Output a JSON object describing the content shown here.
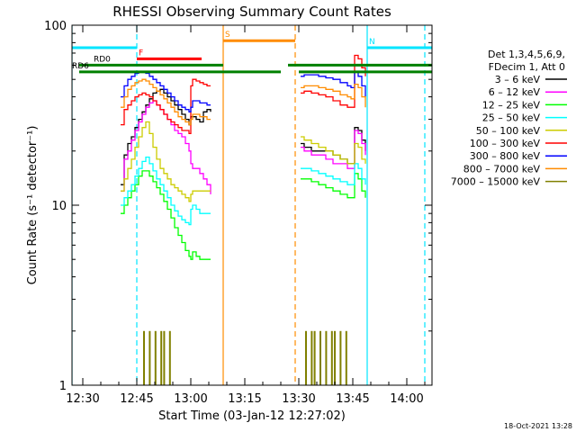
{
  "chart_data": {
    "type": "line",
    "title": "RHESSI Observing Summary Count Rates",
    "xlabel": "Start Time (03-Jan-12 12:27:02)",
    "ylabel": "Count Rate (s⁻¹ detector⁻¹)",
    "x_unit": "minutes since 12:27:02",
    "xlim": [
      0,
      100
    ],
    "ylim": [
      1,
      100
    ],
    "yscale": "log",
    "x_ticks": [
      {
        "t": 3,
        "label": "12:30"
      },
      {
        "t": 18,
        "label": "12:45"
      },
      {
        "t": 33,
        "label": "13:00"
      },
      {
        "t": 48,
        "label": "13:15"
      },
      {
        "t": 63,
        "label": "13:30"
      },
      {
        "t": 78,
        "label": "13:45"
      },
      {
        "t": 93,
        "label": "14:00"
      }
    ],
    "y_ticks": [
      {
        "v": 1,
        "label": "1"
      },
      {
        "v": 10,
        "label": "10"
      },
      {
        "v": 100,
        "label": "100"
      }
    ],
    "legend_header": [
      "Det 1,3,4,5,6,9,",
      "FDecim 1, Att 0"
    ],
    "legend_position": "right",
    "series": [
      {
        "name": "3 – 6 keV",
        "color": "#000000",
        "x": [
          13.5,
          14.5,
          15.5,
          16.5,
          17.5,
          18.5,
          19.5,
          20.5,
          21.5,
          22.5,
          23.5,
          24.5,
          25.5,
          26.5,
          27.5,
          28.5,
          29.5,
          30.5,
          31.5,
          32.5,
          33.0,
          33.5,
          34.5,
          35.5,
          36.5,
          37.5,
          38.5,
          63.5,
          64.5,
          66.5,
          68.5,
          70.5,
          72.5,
          74.5,
          76.5,
          77.5,
          78.5,
          79.5,
          80.5,
          81.5
        ],
        "y": [
          13,
          19,
          22,
          24,
          27,
          30,
          33,
          36,
          39,
          42,
          43,
          44,
          42,
          40,
          38,
          36,
          34,
          32,
          30,
          28,
          31,
          31,
          30,
          29,
          33,
          34,
          33,
          22,
          21,
          20,
          20,
          20,
          19,
          18,
          17,
          17,
          27,
          26,
          23,
          20
        ]
      },
      {
        "name": "6 – 12 keV",
        "color": "#ff00ff",
        "x": [
          13.5,
          14.5,
          15.5,
          16.5,
          17.5,
          18.5,
          19.5,
          20.5,
          21.5,
          22.5,
          23.5,
          24.5,
          25.5,
          26.5,
          27.5,
          28.5,
          29.5,
          30.5,
          31.5,
          32.5,
          33.0,
          33.5,
          34.5,
          35.5,
          36.5,
          37.5,
          38.5,
          63.5,
          64.5,
          66.5,
          68.5,
          70.5,
          72.5,
          74.5,
          76.5,
          77.5,
          78.5,
          79.5,
          80.5,
          81.5
        ],
        "y": [
          12,
          18,
          20,
          23,
          26,
          29,
          32,
          35,
          37,
          38,
          36,
          34,
          32,
          30,
          28,
          26,
          25,
          24,
          22,
          20,
          17,
          16,
          16,
          15,
          14,
          13,
          11.5,
          21,
          20,
          19,
          19,
          18,
          17,
          17,
          16,
          16,
          26,
          25,
          22,
          19
        ]
      },
      {
        "name": "12 – 25 keV",
        "color": "#00ff00",
        "x": [
          13.5,
          14.5,
          15.5,
          16.5,
          17.5,
          18.5,
          19.5,
          20.5,
          21.5,
          22.5,
          23.5,
          24.5,
          25.5,
          26.5,
          27.5,
          28.5,
          29.5,
          30.5,
          31.5,
          32.5,
          33.0,
          33.5,
          34.5,
          35.5,
          36.5,
          37.5,
          38.5,
          63.5,
          64.5,
          66.5,
          68.5,
          70.5,
          72.5,
          74.5,
          76.5,
          77.5,
          78.5,
          79.5,
          80.5,
          81.5
        ],
        "y": [
          9,
          10,
          11,
          12,
          13,
          14.5,
          15.5,
          15.5,
          14.5,
          13.5,
          12.5,
          11.5,
          10.5,
          9.5,
          8.5,
          7.5,
          6.8,
          6.2,
          5.6,
          5.2,
          5.0,
          5.5,
          5.2,
          5.0,
          5.0,
          5.0,
          5.0,
          14,
          14,
          13.5,
          13,
          12.5,
          12,
          11.5,
          11,
          11,
          15,
          14,
          12,
          11
        ]
      },
      {
        "name": "25 – 50 keV",
        "color": "#00ffff",
        "x": [
          13.5,
          14.5,
          15.5,
          16.5,
          17.5,
          18.5,
          19.5,
          20.5,
          21.5,
          22.5,
          23.5,
          24.5,
          25.5,
          26.5,
          27.5,
          28.5,
          29.5,
          30.5,
          31.5,
          32.5,
          33.0,
          33.5,
          34.5,
          35.5,
          36.5,
          37.5,
          38.5,
          63.5,
          64.5,
          66.5,
          68.5,
          70.5,
          72.5,
          74.5,
          76.5,
          77.5,
          78.5,
          79.5,
          80.5,
          81.5
        ],
        "y": [
          10,
          11,
          12,
          13,
          14.5,
          16,
          17.5,
          18.5,
          17,
          15.5,
          14,
          13,
          12,
          11,
          10,
          9.3,
          8.7,
          8.3,
          8.0,
          7.8,
          9.5,
          10,
          9.5,
          9.0,
          9.0,
          9.0,
          9.0,
          16,
          16,
          15.5,
          15,
          14.5,
          14,
          13.5,
          13,
          13,
          17,
          16,
          14,
          13
        ]
      },
      {
        "name": "50 – 100 keV",
        "color": "#cccc00",
        "x": [
          13.5,
          14.5,
          15.5,
          16.5,
          17.5,
          18.5,
          19.5,
          20.5,
          21.5,
          22.5,
          23.5,
          24.5,
          25.5,
          26.5,
          27.5,
          28.5,
          29.5,
          30.5,
          31.5,
          32.5,
          33.0,
          33.5,
          34.5,
          35.5,
          36.5,
          37.5,
          38.5,
          63.5,
          64.5,
          66.5,
          68.5,
          70.5,
          72.5,
          74.5,
          76.5,
          77.5,
          78.5,
          79.5,
          80.5,
          81.5
        ],
        "y": [
          12,
          14,
          16,
          18,
          21,
          24,
          27,
          29,
          25,
          21,
          18,
          16,
          15,
          14,
          13,
          12.5,
          12,
          11.5,
          11,
          10.5,
          11.5,
          12,
          12,
          12,
          12,
          12,
          12,
          24,
          23,
          22,
          21,
          20,
          19,
          18,
          17,
          17,
          22,
          21,
          18,
          17
        ]
      },
      {
        "name": "100 – 300 keV",
        "color": "#ff0000",
        "x": [
          13.5,
          14.5,
          15.5,
          16.5,
          17.5,
          18.5,
          19.5,
          20.5,
          21.5,
          22.5,
          23.5,
          24.5,
          25.5,
          26.5,
          27.5,
          28.5,
          29.5,
          30.5,
          31.5,
          32.5,
          33.0,
          33.5,
          34.5,
          35.5,
          36.5,
          37.5,
          38.5,
          63.5,
          64.5,
          66.5,
          68.5,
          70.5,
          72.5,
          74.5,
          76.5,
          77.5,
          78.5,
          79.5,
          80.5,
          81.5
        ],
        "y": [
          28,
          34,
          36,
          38,
          40,
          41,
          42,
          41,
          40,
          38,
          36,
          34,
          32,
          30,
          29,
          28,
          27,
          26,
          26,
          25,
          46,
          50,
          49,
          48,
          47,
          46,
          46,
          42,
          43,
          42,
          41,
          40,
          38,
          36,
          35,
          35,
          68,
          65,
          58,
          52
        ]
      },
      {
        "name": "300 – 800 keV",
        "color": "#0000ff",
        "x": [
          13.5,
          14.5,
          15.5,
          16.5,
          17.5,
          18.5,
          19.5,
          20.5,
          21.5,
          22.5,
          23.5,
          24.5,
          25.5,
          26.5,
          27.5,
          28.5,
          29.5,
          30.5,
          31.5,
          32.5,
          33.0,
          33.5,
          34.5,
          35.5,
          36.5,
          37.5,
          38.5,
          63.5,
          64.5,
          66.5,
          68.5,
          70.5,
          72.5,
          74.5,
          76.5,
          77.5,
          78.5,
          79.5,
          80.5,
          81.5
        ],
        "y": [
          40,
          46,
          50,
          52,
          54,
          55,
          55,
          54,
          52,
          50,
          48,
          46,
          44,
          42,
          40,
          38,
          36,
          35,
          34,
          33,
          35,
          38,
          38,
          37,
          37,
          36,
          36,
          52,
          53,
          53,
          52,
          51,
          50,
          48,
          46,
          45,
          55,
          52,
          46,
          40
        ]
      },
      {
        "name": "800 – 7000 keV",
        "color": "#ff8c00",
        "x": [
          13.5,
          14.5,
          15.5,
          16.5,
          17.5,
          18.5,
          19.5,
          20.5,
          21.5,
          22.5,
          23.5,
          24.5,
          25.5,
          26.5,
          27.5,
          28.5,
          29.5,
          30.5,
          31.5,
          32.5,
          33.0,
          33.5,
          34.5,
          35.5,
          36.5,
          37.5,
          38.5,
          63.5,
          64.5,
          66.5,
          68.5,
          70.5,
          72.5,
          74.5,
          76.5,
          77.5,
          78.5,
          79.5,
          80.5,
          81.5
        ],
        "y": [
          35,
          40,
          44,
          46,
          48,
          49,
          50,
          49,
          47,
          45,
          43,
          41,
          39,
          37,
          35,
          33,
          31,
          30,
          29,
          28,
          30,
          32,
          32,
          31,
          31,
          30,
          30,
          45,
          46,
          46,
          45,
          44,
          43,
          41,
          40,
          39,
          47,
          45,
          40,
          35
        ]
      },
      {
        "name": "7000 – 15000 keV",
        "color": "#808000",
        "x": [
          20,
          20.8,
          21.6,
          22.4,
          23.2,
          24,
          24.8,
          25.6,
          26.4,
          27.2,
          28,
          65,
          65.8,
          66.6,
          67.4,
          68.2,
          69,
          69.8,
          70.6,
          71.4,
          72.2,
          73,
          73.8,
          74.6,
          75.4,
          76.2
        ],
        "y": [
          2,
          1,
          2,
          1,
          2,
          1,
          2,
          2,
          1,
          2,
          1,
          2,
          1,
          2,
          2,
          1,
          2,
          1,
          2,
          1,
          2,
          2,
          1,
          2,
          1,
          2
        ]
      }
    ],
    "attenuator_bars": [
      {
        "label": "RD0",
        "color": "#008000",
        "segments": [
          [
            2,
            42
          ],
          [
            60,
            100
          ]
        ],
        "level": 60
      },
      {
        "label": "RD6",
        "color": "#008000",
        "segments": [
          [
            2,
            33
          ],
          [
            33,
            58
          ],
          [
            63,
            100
          ]
        ],
        "level": 55
      },
      {
        "label": "N",
        "color": "#00e5ff",
        "segments": [
          [
            0,
            18
          ],
          [
            82,
            100
          ]
        ],
        "level": 75
      },
      {
        "label": "F",
        "color": "#ff0000",
        "segments": [
          [
            18,
            36
          ]
        ],
        "level": 65
      },
      {
        "label": "S",
        "color": "#ff8c00",
        "segments": [
          [
            42,
            62
          ]
        ],
        "level": 82
      }
    ],
    "vertical_markers": [
      {
        "t": 0,
        "color": "#00e5ff",
        "style": "solid"
      },
      {
        "t": 18,
        "color": "#00e5ff",
        "style": "dashed"
      },
      {
        "t": 42,
        "color": "#ff8c00",
        "style": "solid"
      },
      {
        "t": 62,
        "color": "#ff8c00",
        "style": "dashed"
      },
      {
        "t": 82,
        "color": "#00e5ff",
        "style": "solid"
      },
      {
        "t": 98,
        "color": "#00e5ff",
        "style": "dashed"
      }
    ],
    "footer_timestamp": "18-Oct-2021 13:28"
  }
}
